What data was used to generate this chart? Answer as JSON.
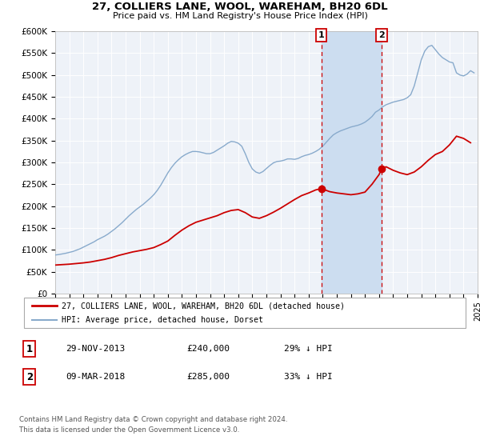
{
  "title": "27, COLLIERS LANE, WOOL, WAREHAM, BH20 6DL",
  "subtitle": "Price paid vs. HM Land Registry's House Price Index (HPI)",
  "ylim": [
    0,
    600000
  ],
  "xlim": [
    1995,
    2025
  ],
  "yticks": [
    0,
    50000,
    100000,
    150000,
    200000,
    250000,
    300000,
    350000,
    400000,
    450000,
    500000,
    550000,
    600000
  ],
  "ytick_labels": [
    "£0",
    "£50K",
    "£100K",
    "£150K",
    "£200K",
    "£250K",
    "£300K",
    "£350K",
    "£400K",
    "£450K",
    "£500K",
    "£550K",
    "£600K"
  ],
  "xticks": [
    1995,
    1996,
    1997,
    1998,
    1999,
    2000,
    2001,
    2002,
    2003,
    2004,
    2005,
    2006,
    2007,
    2008,
    2009,
    2010,
    2011,
    2012,
    2013,
    2014,
    2015,
    2016,
    2017,
    2018,
    2019,
    2020,
    2021,
    2022,
    2023,
    2024,
    2025
  ],
  "plot_bg": "#eef2f8",
  "grid_color": "#ffffff",
  "red_line_color": "#cc0000",
  "blue_line_color": "#88aacc",
  "shade_color": "#ccddf0",
  "vline1_x": 2013.91,
  "vline2_x": 2018.19,
  "dot1_x": 2013.91,
  "dot1_y": 240000,
  "dot2_x": 2018.19,
  "dot2_y": 285000,
  "legend_label_red": "27, COLLIERS LANE, WOOL, WAREHAM, BH20 6DL (detached house)",
  "legend_label_blue": "HPI: Average price, detached house, Dorset",
  "table_row1": [
    "1",
    "29-NOV-2013",
    "£240,000",
    "29% ↓ HPI"
  ],
  "table_row2": [
    "2",
    "09-MAR-2018",
    "£285,000",
    "33% ↓ HPI"
  ],
  "footnote1": "Contains HM Land Registry data © Crown copyright and database right 2024.",
  "footnote2": "This data is licensed under the Open Government Licence v3.0.",
  "hpi_x": [
    1995.0,
    1995.25,
    1995.5,
    1995.75,
    1996.0,
    1996.25,
    1996.5,
    1996.75,
    1997.0,
    1997.25,
    1997.5,
    1997.75,
    1998.0,
    1998.25,
    1998.5,
    1998.75,
    1999.0,
    1999.25,
    1999.5,
    1999.75,
    2000.0,
    2000.25,
    2000.5,
    2000.75,
    2001.0,
    2001.25,
    2001.5,
    2001.75,
    2002.0,
    2002.25,
    2002.5,
    2002.75,
    2003.0,
    2003.25,
    2003.5,
    2003.75,
    2004.0,
    2004.25,
    2004.5,
    2004.75,
    2005.0,
    2005.25,
    2005.5,
    2005.75,
    2006.0,
    2006.25,
    2006.5,
    2006.75,
    2007.0,
    2007.25,
    2007.5,
    2007.75,
    2008.0,
    2008.25,
    2008.5,
    2008.75,
    2009.0,
    2009.25,
    2009.5,
    2009.75,
    2010.0,
    2010.25,
    2010.5,
    2010.75,
    2011.0,
    2011.25,
    2011.5,
    2011.75,
    2012.0,
    2012.25,
    2012.5,
    2012.75,
    2013.0,
    2013.25,
    2013.5,
    2013.75,
    2014.0,
    2014.25,
    2014.5,
    2014.75,
    2015.0,
    2015.25,
    2015.5,
    2015.75,
    2016.0,
    2016.25,
    2016.5,
    2016.75,
    2017.0,
    2017.25,
    2017.5,
    2017.75,
    2018.0,
    2018.25,
    2018.5,
    2018.75,
    2019.0,
    2019.25,
    2019.5,
    2019.75,
    2020.0,
    2020.25,
    2020.5,
    2020.75,
    2021.0,
    2021.25,
    2021.5,
    2021.75,
    2022.0,
    2022.25,
    2022.5,
    2022.75,
    2023.0,
    2023.25,
    2023.5,
    2023.75,
    2024.0,
    2024.25,
    2024.5,
    2024.75
  ],
  "hpi_y": [
    88000,
    89000,
    90500,
    92000,
    94000,
    96000,
    99000,
    102000,
    106000,
    110000,
    114000,
    118000,
    123000,
    127000,
    131000,
    136000,
    142000,
    148000,
    155000,
    162000,
    170000,
    178000,
    185000,
    192000,
    198000,
    204000,
    211000,
    218000,
    226000,
    236000,
    248000,
    262000,
    276000,
    288000,
    298000,
    306000,
    313000,
    318000,
    322000,
    325000,
    325000,
    324000,
    322000,
    320000,
    320000,
    323000,
    328000,
    333000,
    338000,
    344000,
    348000,
    347000,
    344000,
    337000,
    320000,
    300000,
    285000,
    278000,
    275000,
    279000,
    286000,
    293000,
    299000,
    302000,
    303000,
    305000,
    308000,
    308000,
    307000,
    309000,
    313000,
    316000,
    318000,
    321000,
    325000,
    330000,
    337000,
    346000,
    355000,
    363000,
    368000,
    372000,
    375000,
    378000,
    381000,
    383000,
    385000,
    388000,
    392000,
    398000,
    405000,
    415000,
    420000,
    427000,
    432000,
    435000,
    438000,
    440000,
    442000,
    444000,
    448000,
    455000,
    475000,
    505000,
    535000,
    555000,
    565000,
    568000,
    558000,
    548000,
    540000,
    535000,
    530000,
    528000,
    505000,
    500000,
    498000,
    502000,
    510000,
    505000
  ],
  "red_x": [
    1995.0,
    1995.5,
    1996.0,
    1996.5,
    1997.0,
    1997.5,
    1998.0,
    1998.5,
    1999.0,
    1999.5,
    2000.0,
    2000.5,
    2001.0,
    2001.5,
    2002.0,
    2002.5,
    2003.0,
    2003.5,
    2004.0,
    2004.5,
    2005.0,
    2005.5,
    2006.0,
    2006.5,
    2007.0,
    2007.5,
    2008.0,
    2008.5,
    2009.0,
    2009.5,
    2010.0,
    2010.5,
    2011.0,
    2011.5,
    2012.0,
    2012.5,
    2013.0,
    2013.5,
    2013.91,
    2014.5,
    2015.0,
    2015.5,
    2016.0,
    2016.5,
    2017.0,
    2017.5,
    2018.0,
    2018.19,
    2018.5,
    2019.0,
    2019.5,
    2020.0,
    2020.5,
    2021.0,
    2021.5,
    2022.0,
    2022.5,
    2023.0,
    2023.5,
    2024.0,
    2024.5
  ],
  "red_y": [
    65000,
    66000,
    67000,
    68500,
    70000,
    72000,
    75000,
    78000,
    82000,
    87000,
    91000,
    95000,
    98000,
    101000,
    105000,
    112000,
    120000,
    133000,
    145000,
    155000,
    163000,
    168000,
    173000,
    178000,
    185000,
    190000,
    192000,
    185000,
    175000,
    172000,
    178000,
    186000,
    195000,
    205000,
    215000,
    224000,
    230000,
    237000,
    240000,
    233000,
    230000,
    228000,
    226000,
    228000,
    232000,
    250000,
    272000,
    285000,
    290000,
    282000,
    276000,
    272000,
    278000,
    290000,
    305000,
    318000,
    325000,
    340000,
    360000,
    355000,
    345000
  ]
}
